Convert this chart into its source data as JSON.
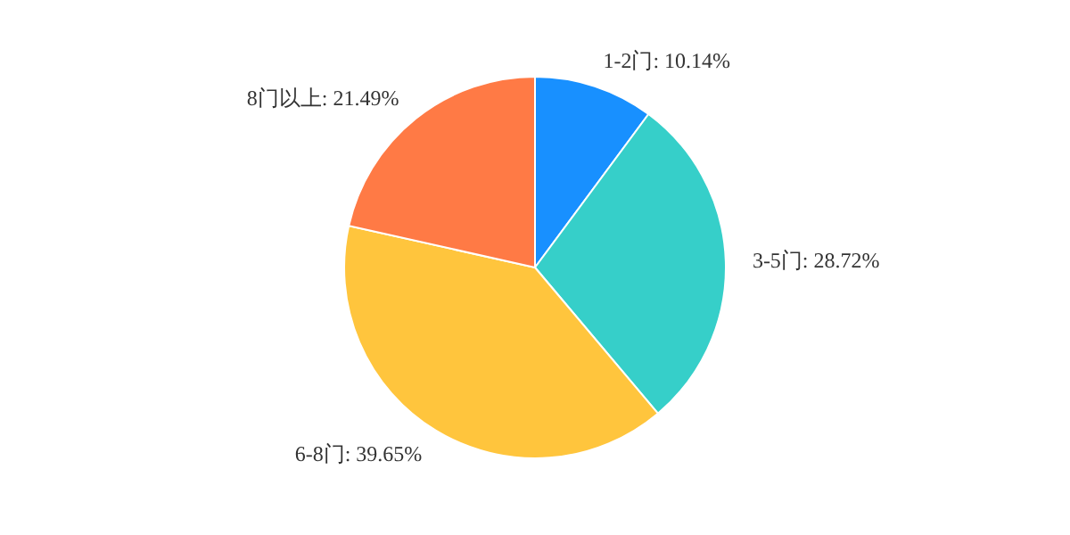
{
  "chart_data": {
    "type": "pie",
    "categories": [
      "1-2门",
      "3-5门",
      "6-8门",
      "8门以上"
    ],
    "values": [
      10.14,
      28.72,
      39.65,
      21.49
    ],
    "value_labels": [
      "10.14%",
      "28.72%",
      "39.65%",
      "21.49%"
    ],
    "colors": [
      "#1890ff",
      "#36cfc9",
      "#ffc53d",
      "#ff7a45"
    ]
  }
}
